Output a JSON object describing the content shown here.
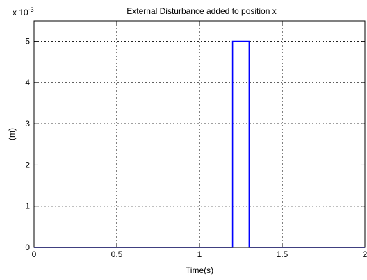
{
  "chart_data": {
    "type": "line",
    "title": "External Disturbance added to position x",
    "xlabel": "Time(s)",
    "ylabel": "(m)",
    "exponent_label": {
      "base": "x 10",
      "power": "-3"
    },
    "xlim": [
      0,
      2
    ],
    "ylim": [
      0,
      5.5
    ],
    "x_ticks": [
      0,
      0.5,
      1,
      1.5,
      2
    ],
    "x_tick_labels": [
      "0",
      "0.5",
      "1",
      "1.5",
      "2"
    ],
    "y_ticks": [
      0,
      1,
      2,
      3,
      4,
      5
    ],
    "y_tick_labels": [
      "0",
      "1",
      "2",
      "3",
      "4",
      "5"
    ],
    "grid": true,
    "series": [
      {
        "color": "#0000ff",
        "x": [
          0,
          1.2,
          1.2,
          1.3,
          1.3,
          2
        ],
        "y": [
          0,
          0,
          5,
          5,
          0,
          0
        ]
      }
    ]
  }
}
